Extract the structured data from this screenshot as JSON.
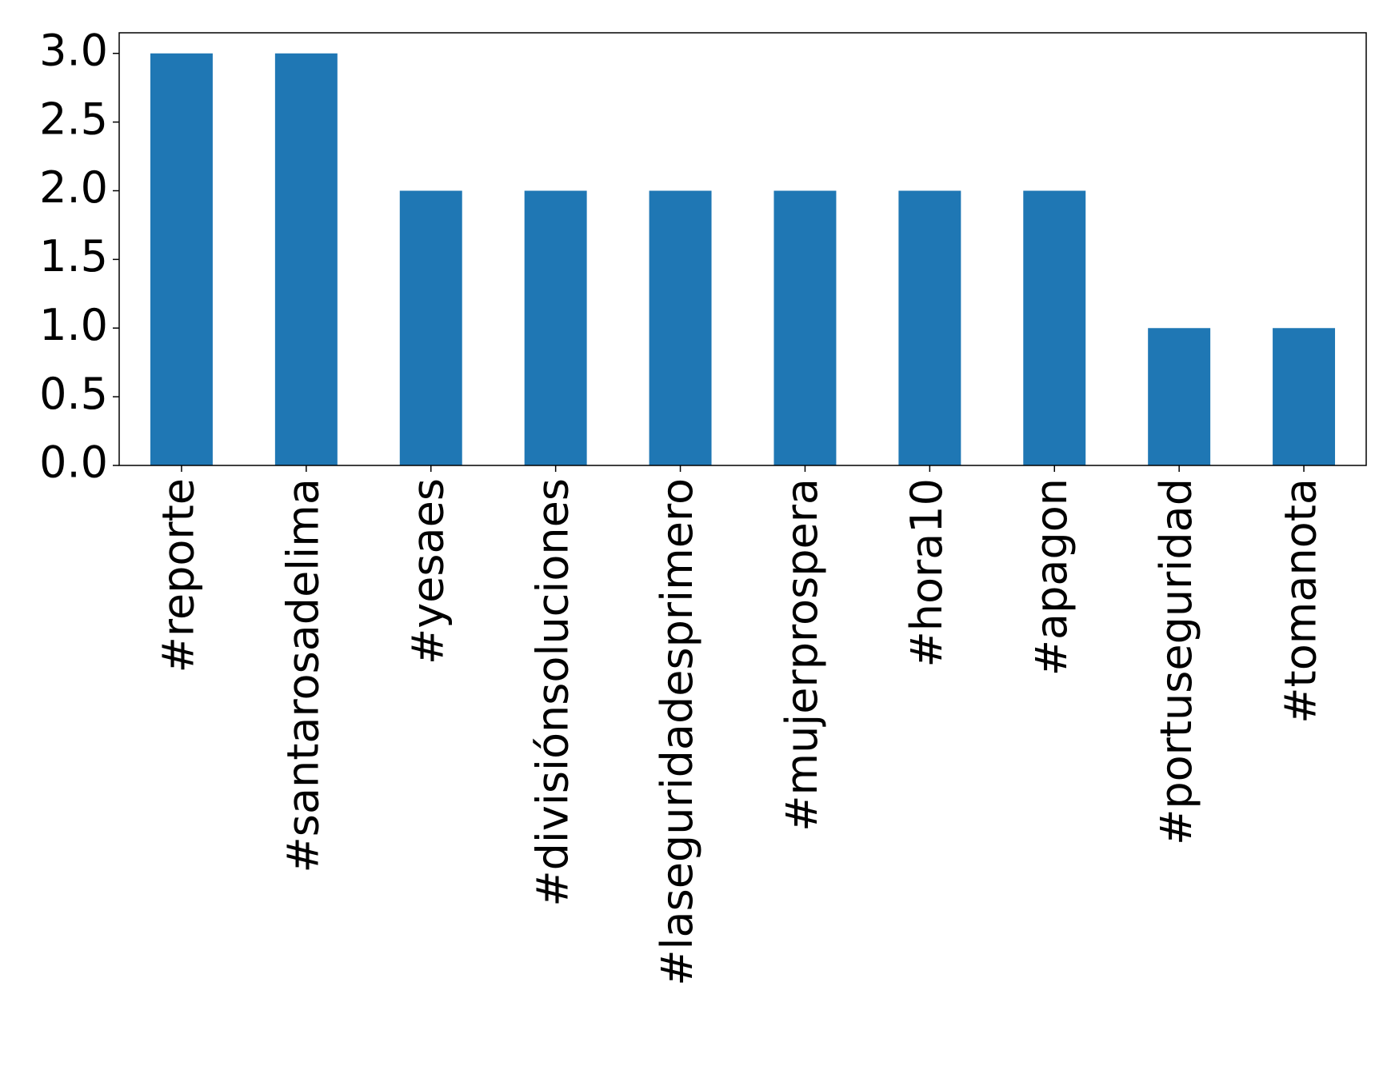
{
  "chart_data": {
    "type": "bar",
    "categories": [
      "#reporte",
      "#santarosadelima",
      "#yesaes",
      "#divisiónsoluciones",
      "#laseguridadesprimero",
      "#mujerprospera",
      "#hora10",
      "#apagon",
      "#portuseguridad",
      "#tomanota"
    ],
    "values": [
      3,
      3,
      2,
      2,
      2,
      2,
      2,
      2,
      1,
      1
    ],
    "color": "#1f77b4",
    "ylim": [
      0,
      3.15
    ],
    "yticks": [
      {
        "value": 0,
        "label": "0.0"
      },
      {
        "value": 0.5,
        "label": "0.5"
      },
      {
        "value": 1,
        "label": "1.0"
      },
      {
        "value": 1.5,
        "label": "1.5"
      },
      {
        "value": 2,
        "label": "2.0"
      },
      {
        "value": 2.5,
        "label": "2.5"
      },
      {
        "value": 3,
        "label": "3.0"
      }
    ],
    "grid": false
  }
}
